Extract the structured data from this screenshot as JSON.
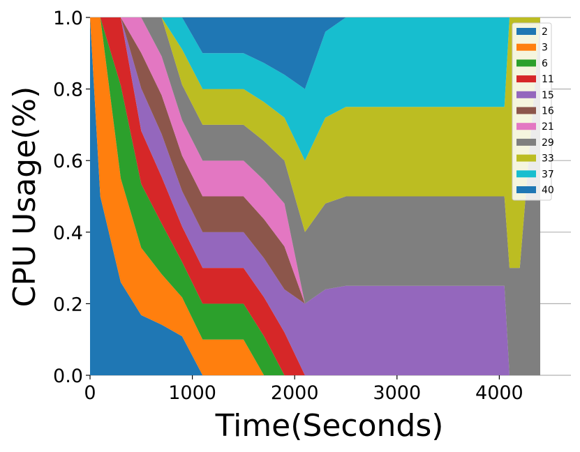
{
  "chart_data": {
    "type": "area",
    "stacked": true,
    "normalized": true,
    "title": "",
    "xlabel": "Time(Seconds)",
    "ylabel": "CPU Usage(%)",
    "xlim": [
      0,
      4700
    ],
    "ylim": [
      0,
      1.0
    ],
    "x_ticks": [
      0,
      1000,
      2000,
      3000,
      4000
    ],
    "x_tick_labels": [
      "0",
      "1000",
      "2000",
      "3000",
      "4000"
    ],
    "y_ticks": [
      0.0,
      0.2,
      0.4,
      0.6,
      0.8,
      1.0
    ],
    "y_tick_labels": [
      "0.0",
      "0.2",
      "0.4",
      "0.6",
      "0.8",
      "1.0"
    ],
    "grid": "horizontal",
    "legend_position": "top-right",
    "x": [
      0,
      100,
      300,
      500,
      700,
      900,
      1100,
      1300,
      1500,
      1700,
      1900,
      2100,
      2300,
      2500,
      2700,
      2900,
      3100,
      3300,
      3500,
      3700,
      3900,
      4050,
      4100,
      4200,
      4400
    ],
    "series": [
      {
        "name": "2",
        "color": "#1f77b4",
        "values": [
          1.0,
          0.5,
          0.26,
          0.17,
          0.13,
          0.11,
          0.0,
          0,
          0,
          0,
          0,
          0,
          0,
          0,
          0,
          0,
          0,
          0,
          0,
          0,
          0,
          0,
          0,
          0,
          0
        ]
      },
      {
        "name": "3",
        "color": "#ff7f0e",
        "values": [
          0,
          0.5,
          0.29,
          0.19,
          0.13,
          0.11,
          0.1,
          0.1,
          0.1,
          0.0,
          0,
          0,
          0,
          0,
          0,
          0,
          0,
          0,
          0,
          0,
          0,
          0,
          0,
          0,
          0
        ]
      },
      {
        "name": "6",
        "color": "#2ca02c",
        "values": [
          0,
          0,
          0.26,
          0.18,
          0.13,
          0.1,
          0.1,
          0.1,
          0.1,
          0.12,
          0.0,
          0,
          0,
          0,
          0,
          0,
          0,
          0,
          0,
          0,
          0,
          0,
          0,
          0,
          0
        ]
      },
      {
        "name": "11",
        "color": "#d62728",
        "values": [
          0,
          0,
          0.19,
          0.15,
          0.12,
          0.1,
          0.1,
          0.1,
          0.1,
          0.12,
          0.12,
          0.0,
          0,
          0,
          0,
          0,
          0,
          0,
          0,
          0,
          0,
          0,
          0,
          0,
          0
        ]
      },
      {
        "name": "15",
        "color": "#9467bd",
        "values": [
          0,
          0,
          0,
          0.12,
          0.11,
          0.1,
          0.1,
          0.1,
          0.1,
          0.12,
          0.12,
          0.2,
          0.24,
          0.25,
          0.25,
          0.25,
          0.25,
          0.25,
          0.25,
          0.25,
          0.25,
          0.25,
          0.0,
          0,
          0
        ]
      },
      {
        "name": "16",
        "color": "#8c564b",
        "values": [
          0,
          0,
          0,
          0.1,
          0.1,
          0.1,
          0.1,
          0.1,
          0.1,
          0.12,
          0.12,
          0.0,
          0,
          0,
          0,
          0,
          0,
          0,
          0,
          0,
          0,
          0,
          0,
          0,
          0
        ]
      },
      {
        "name": "21",
        "color": "#e377c2",
        "values": [
          0,
          0,
          0,
          0.1,
          0.1,
          0.1,
          0.1,
          0.1,
          0.1,
          0.12,
          0.12,
          0,
          0,
          0,
          0,
          0,
          0,
          0,
          0,
          0,
          0,
          0,
          0,
          0,
          0
        ]
      },
      {
        "name": "29",
        "color": "#7f7f7f",
        "values": [
          0,
          0,
          0,
          0,
          0.1,
          0.1,
          0.1,
          0.1,
          0.1,
          0.12,
          0.12,
          0.2,
          0.24,
          0.25,
          0.25,
          0.25,
          0.25,
          0.25,
          0.25,
          0.25,
          0.25,
          0.25,
          0.3,
          0.3,
          1.0
        ]
      },
      {
        "name": "33",
        "color": "#bcbd22",
        "values": [
          0,
          0,
          0,
          0,
          0,
          0.1,
          0.1,
          0.1,
          0.1,
          0.12,
          0.12,
          0.2,
          0.24,
          0.25,
          0.25,
          0.25,
          0.25,
          0.25,
          0.25,
          0.25,
          0.25,
          0.25,
          0.7,
          0.7,
          0
        ]
      },
      {
        "name": "37",
        "color": "#17becf",
        "values": [
          0,
          0,
          0,
          0,
          0,
          0.09,
          0.1,
          0.1,
          0.1,
          0.12,
          0.12,
          0.2,
          0.24,
          0.25,
          0.25,
          0.25,
          0.25,
          0.25,
          0.25,
          0.25,
          0.25,
          0.25,
          0,
          0,
          0
        ]
      },
      {
        "name": "40",
        "color": "#1f77b4",
        "values": [
          0,
          0,
          0,
          0,
          0,
          0,
          0.1,
          0.1,
          0.1,
          0.14,
          0.16,
          0.2,
          0.04,
          0,
          0,
          0,
          0,
          0,
          0,
          0,
          0,
          0,
          0,
          0,
          0
        ]
      }
    ]
  }
}
